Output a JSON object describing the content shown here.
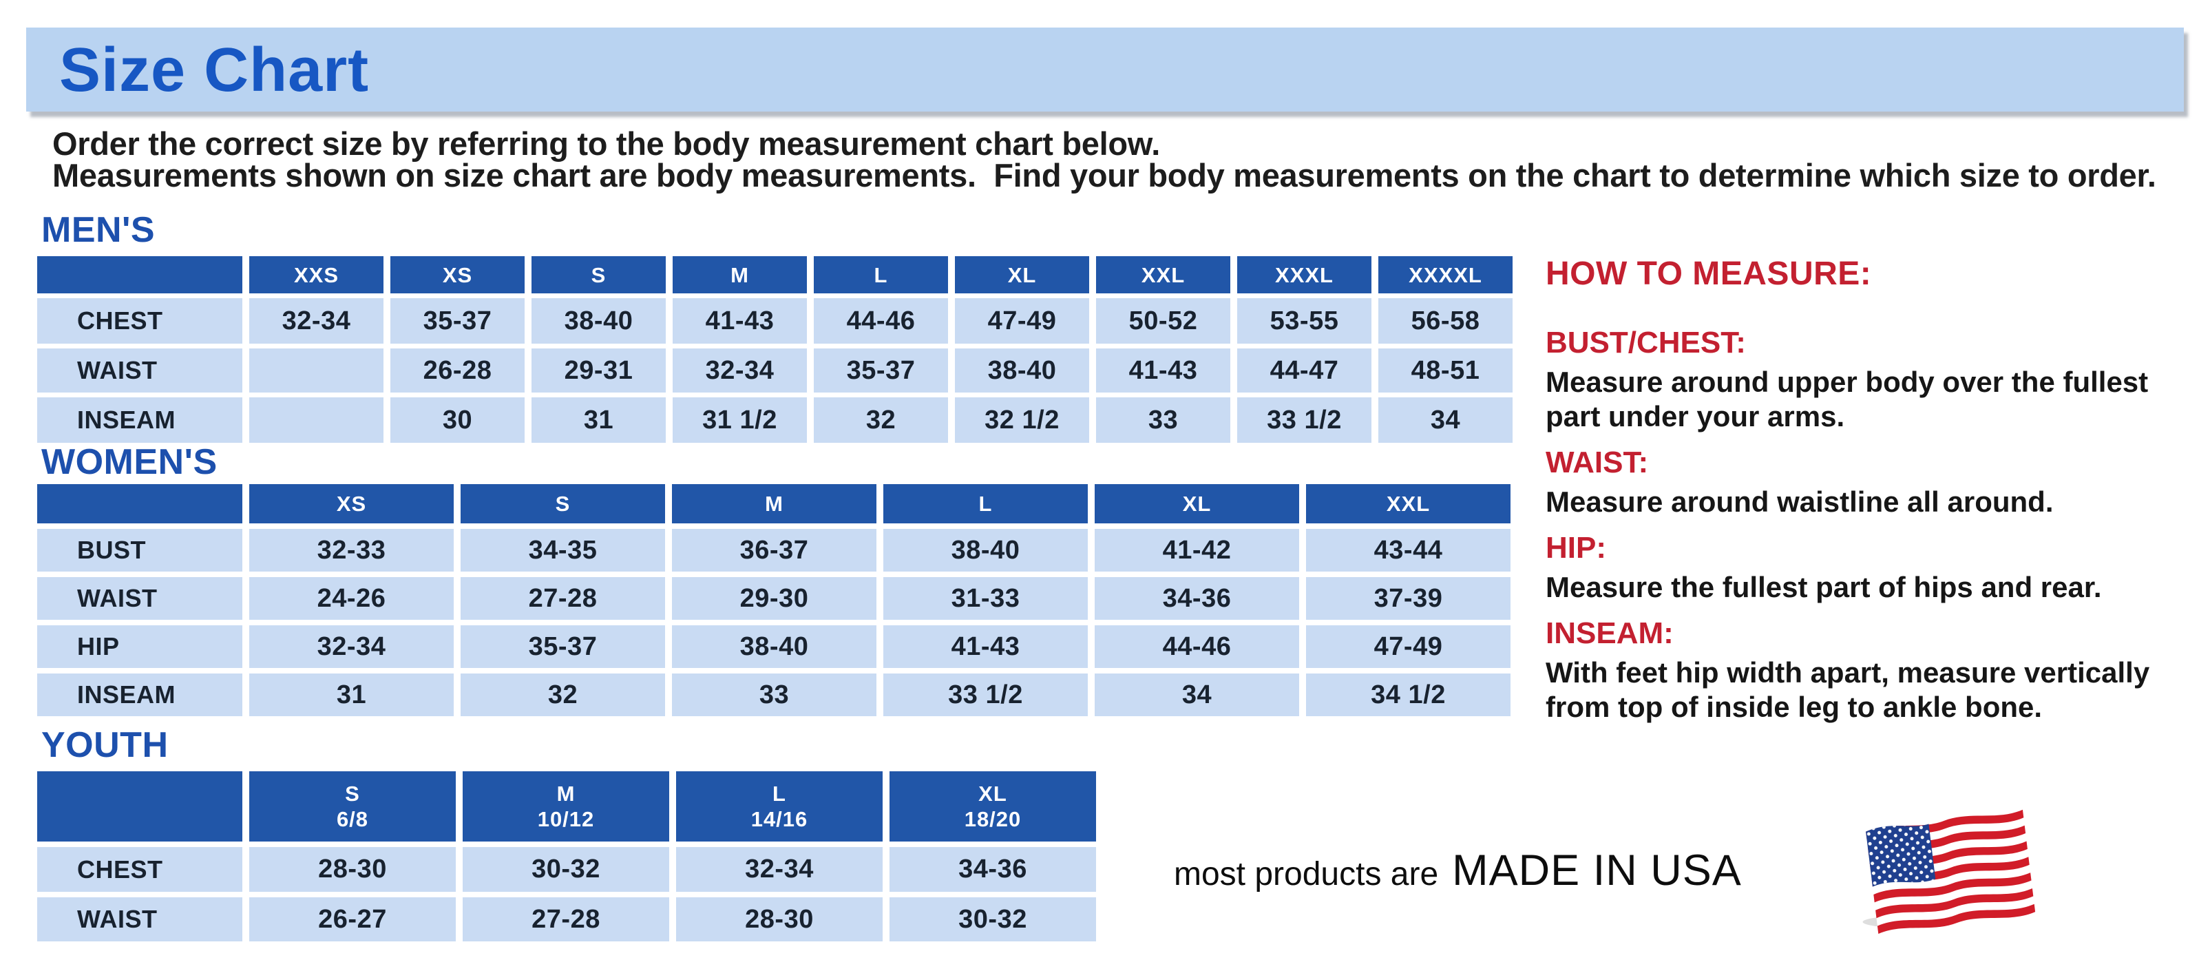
{
  "colors": {
    "banner_bg": "#b9d3f1",
    "title_blue": "#1757c3",
    "section_blue": "#1d50ad",
    "header_cell_blue": "#2156a8",
    "cell_light_blue": "#c9dbf3",
    "cell_text": "#18222f",
    "red": "#c32030",
    "body_text": "#1d1d1d"
  },
  "header": {
    "title": "Size Chart"
  },
  "intro": {
    "line1": "Order the correct size by referring to the body measurement chart below.",
    "line2": "Measurements shown on size chart are body measurements.  Find your body measurements on the chart to determine which size to order."
  },
  "tables": {
    "mens": {
      "heading": "MEN'S",
      "columns": [
        "XXS",
        "XS",
        "S",
        "M",
        "L",
        "XL",
        "XXL",
        "XXXL",
        "XXXXL"
      ],
      "rows": [
        {
          "label": "CHEST",
          "values": [
            "32-34",
            "35-37",
            "38-40",
            "41-43",
            "44-46",
            "47-49",
            "50-52",
            "53-55",
            "56-58"
          ]
        },
        {
          "label": "WAIST",
          "values": [
            "",
            "26-28",
            "29-31",
            "32-34",
            "35-37",
            "38-40",
            "41-43",
            "44-47",
            "48-51"
          ]
        },
        {
          "label": "INSEAM",
          "values": [
            "",
            "30",
            "31",
            "31 1/2",
            "32",
            "32 1/2",
            "33",
            "33 1/2",
            "34"
          ]
        }
      ]
    },
    "womens": {
      "heading": "WOMEN'S",
      "columns": [
        "XS",
        "S",
        "M",
        "L",
        "XL",
        "XXL"
      ],
      "rows": [
        {
          "label": "BUST",
          "values": [
            "32-33",
            "34-35",
            "36-37",
            "38-40",
            "41-42",
            "43-44"
          ]
        },
        {
          "label": "WAIST",
          "values": [
            "24-26",
            "27-28",
            "29-30",
            "31-33",
            "34-36",
            "37-39"
          ]
        },
        {
          "label": "HIP",
          "values": [
            "32-34",
            "35-37",
            "38-40",
            "41-43",
            "44-46",
            "47-49"
          ]
        },
        {
          "label": "INSEAM",
          "values": [
            "31",
            "32",
            "33",
            "33 1/2",
            "34",
            "34 1/2"
          ]
        }
      ]
    },
    "youth": {
      "heading": "YOUTH",
      "columns": [
        "S\n6/8",
        "M\n10/12",
        "L\n14/16",
        "XL\n18/20"
      ],
      "rows": [
        {
          "label": "CHEST",
          "values": [
            "28-30",
            "30-32",
            "32-34",
            "34-36"
          ]
        },
        {
          "label": "WAIST",
          "values": [
            "26-27",
            "27-28",
            "28-30",
            "30-32"
          ]
        }
      ]
    }
  },
  "how_to_measure": {
    "heading": "HOW TO MEASURE:",
    "items": [
      {
        "term": "BUST/CHEST:",
        "description": "Measure around upper body over the fullest part under your arms."
      },
      {
        "term": "WAIST:",
        "description": "Measure around waistline all around."
      },
      {
        "term": "HIP:",
        "description": "Measure the fullest part of hips and rear."
      },
      {
        "term": "INSEAM:",
        "description": "With feet hip width apart, measure vertically from top of inside leg to ankle bone."
      }
    ]
  },
  "footer": {
    "prefix": "most products are",
    "emphasis": "MADE IN USA",
    "flag_icon": "us-flag-icon"
  }
}
